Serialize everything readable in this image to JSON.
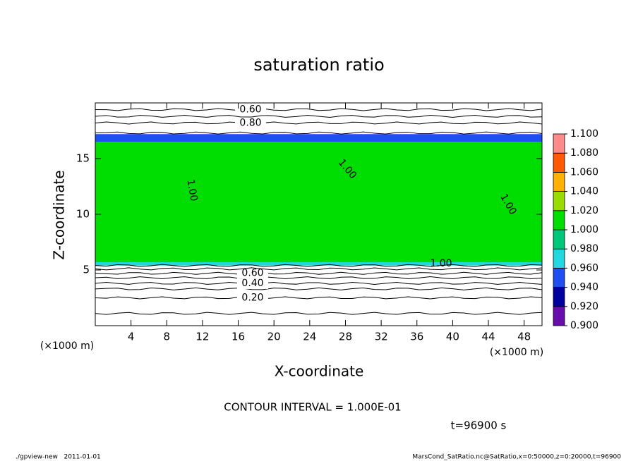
{
  "chart_data": {
    "type": "contour",
    "title": "saturation ratio",
    "x_label": "X-coordinate",
    "y_label": "Z-coordinate",
    "x_unit_left": "(×1000 m)",
    "x_unit_right": "(×1000 m)",
    "xlim": [
      0,
      50
    ],
    "ylim": [
      0,
      20
    ],
    "xticks": [
      4,
      8,
      12,
      16,
      20,
      24,
      28,
      32,
      36,
      40,
      44,
      48
    ],
    "yticks": [
      5,
      10,
      15
    ],
    "layers": [
      {
        "zlim": [
          5.6,
          16.5
        ],
        "color": "#00dd00"
      },
      {
        "zlim": [
          16.5,
          17.2
        ],
        "color": "#1f4ff0"
      },
      {
        "zlim": [
          5.4,
          5.7
        ],
        "color": "#22d8e0"
      }
    ],
    "contours": [
      {
        "z": 1.1
      },
      {
        "z": 2.5,
        "label": "0.20"
      },
      {
        "z": 3.3
      },
      {
        "z": 3.8,
        "label": "0.40"
      },
      {
        "z": 4.3
      },
      {
        "z": 4.7,
        "label": "0.60"
      },
      {
        "z": 5.1
      },
      {
        "z": 5.4
      },
      {
        "z": 17.3
      },
      {
        "z": 18.2,
        "label": "0.80"
      },
      {
        "z": 18.8
      },
      {
        "z": 19.4,
        "label": "0.60"
      }
    ],
    "inner_labels": [
      "1.00",
      "1.00",
      "1.00",
      "1.00"
    ],
    "colorbar": {
      "levels": [
        {
          "value": 0.9,
          "label": "0.900"
        },
        {
          "value": 0.92,
          "label": "0.920"
        },
        {
          "value": 0.94,
          "label": "0.940"
        },
        {
          "value": 0.96,
          "label": "0.960"
        },
        {
          "value": 0.98,
          "label": "0.980"
        },
        {
          "value": 1.0,
          "label": "1.000"
        },
        {
          "value": 1.02,
          "label": "1.020"
        },
        {
          "value": 1.04,
          "label": "1.040"
        },
        {
          "value": 1.06,
          "label": "1.060"
        },
        {
          "value": 1.08,
          "label": "1.080"
        },
        {
          "value": 1.1,
          "label": "1.100"
        }
      ],
      "colors": [
        "#6a0dad",
        "#0000a0",
        "#1f4ff0",
        "#22d8e0",
        "#00c87a",
        "#00dd00",
        "#99dd00",
        "#ffb000",
        "#ff5a00",
        "#ff8a8a"
      ]
    },
    "annotation": "CONTOUR INTERVAL = 1.000E-01",
    "time_label": "t=96900 s",
    "footer_left": "./gpview-new   2011-01-01",
    "footer_right": "MarsCond_SatRatio.nc@SatRatio,x=0:50000,z=0:20000,t=96900"
  }
}
